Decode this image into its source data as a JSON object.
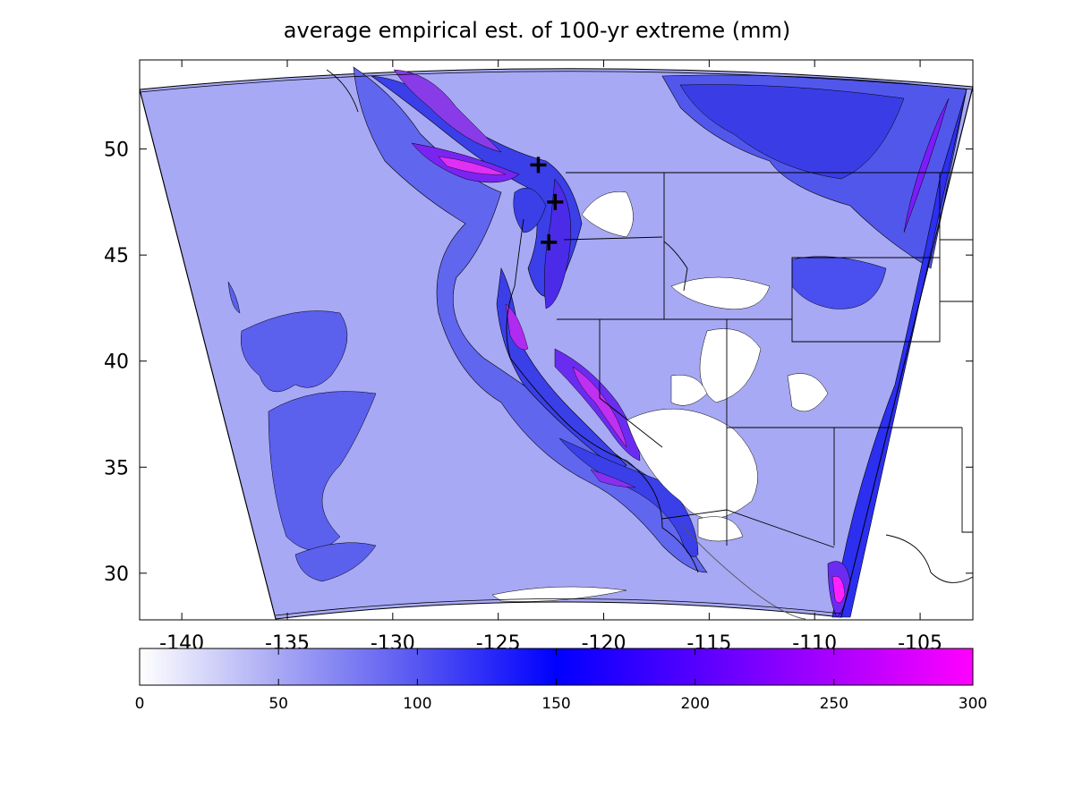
{
  "title": "average empirical est. of 100-yr extreme (mm)",
  "x_ticks": [
    "-140",
    "-135",
    "-130",
    "-125",
    "-120",
    "-115",
    "-110",
    "-105"
  ],
  "y_ticks": [
    "50",
    "45",
    "40",
    "35",
    "30"
  ],
  "colorbar": {
    "ticks": [
      "0",
      "50",
      "100",
      "150",
      "200",
      "250",
      "300"
    ],
    "range": [
      0,
      300
    ],
    "colors": [
      "#ffffff",
      "#aaaaf5",
      "#0000ff",
      "#ff00ff"
    ]
  },
  "map": {
    "lon_range": [
      -142,
      -102.5
    ],
    "lat_range": [
      27.8,
      54.2
    ],
    "domain_fill": "#a7a9f5",
    "markers": [
      {
        "lon": -123.1,
        "lat": 49.25
      },
      {
        "lon": -122.3,
        "lat": 47.5
      },
      {
        "lon": -122.6,
        "lat": 45.6
      }
    ]
  }
}
